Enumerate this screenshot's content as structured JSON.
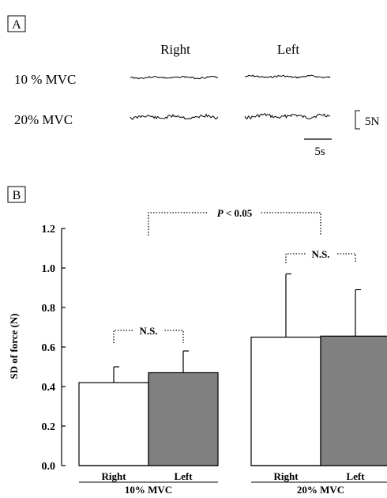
{
  "panel_a": {
    "label": "A",
    "col_right": "Right",
    "col_left": "Left",
    "row_10": "10 % MVC",
    "row_20": "20% MVC",
    "scale_force": "5N",
    "scale_time": "5s"
  },
  "panel_b": {
    "label": "B",
    "p_label": "P < 0.05",
    "ns_label": "N.S."
  },
  "chart_data": {
    "type": "bar",
    "ylabel": "SD of force (N)",
    "ylim": [
      0,
      1.2
    ],
    "yticks": [
      "0.0",
      "0.2",
      "0.4",
      "0.6",
      "0.8",
      "1.0",
      "1.2"
    ],
    "groups": [
      "10% MVC",
      "20% MVC"
    ],
    "categories": [
      "Right",
      "Left"
    ],
    "bars": [
      {
        "group": "10% MVC",
        "category": "Right",
        "value": 0.42,
        "error": 0.08,
        "color": "#ffffff"
      },
      {
        "group": "10% MVC",
        "category": "Left",
        "value": 0.47,
        "error": 0.11,
        "color": "#808080"
      },
      {
        "group": "20% MVC",
        "category": "Right",
        "value": 0.65,
        "error": 0.32,
        "color": "#ffffff"
      },
      {
        "group": "20% MVC",
        "category": "Left",
        "value": 0.655,
        "error": 0.235,
        "color": "#808080"
      }
    ],
    "annotations": [
      {
        "text": "P < 0.05",
        "between": [
          "10% MVC",
          "20% MVC"
        ]
      },
      {
        "text": "N.S.",
        "between": [
          "10% MVC Right",
          "10% MVC Left"
        ]
      },
      {
        "text": "N.S.",
        "between": [
          "20% MVC Right",
          "20% MVC Left"
        ]
      }
    ],
    "grid": false,
    "legend": "none"
  }
}
